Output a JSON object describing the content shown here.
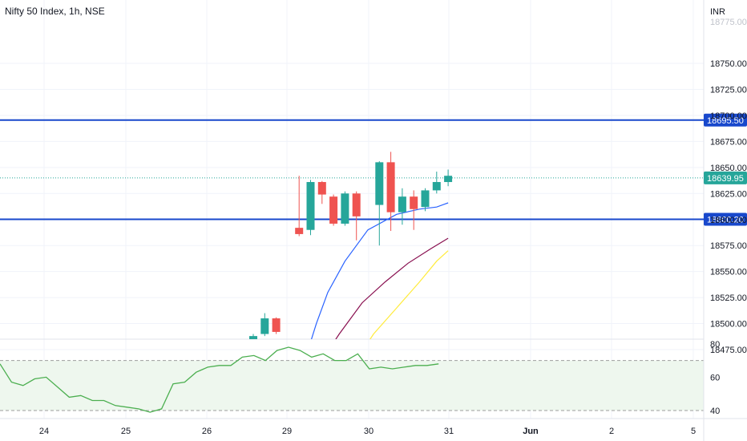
{
  "header": {
    "symbol_label": "Nifty 50 Index, 1h, NSE",
    "currency": "INR"
  },
  "price_axis": {
    "clipped_top_label": "18775.00",
    "ticks": [
      18750,
      18725,
      18700,
      18675,
      18650,
      18625,
      18600,
      18575,
      18550,
      18525,
      18500,
      18475
    ],
    "tick_labels": [
      "18750.00",
      "18725.00",
      "18700.00",
      "18675.00",
      "18650.00",
      "18625.00",
      "18600.00",
      "18575.00",
      "18550.00",
      "18525.00",
      "18500.00",
      "18475.00"
    ]
  },
  "price_lines": [
    {
      "label": "18695.50",
      "value": 18695.5,
      "color": "#1848cc"
    },
    {
      "label": "18600.20",
      "value": 18600.2,
      "color": "#1848cc"
    }
  ],
  "last_price": {
    "label": "18639.95",
    "value": 18639.95,
    "color": "#26a69a"
  },
  "time_axis": {
    "labels": [
      "24",
      "25",
      "26",
      "29",
      "30",
      "31",
      "Jun",
      "2",
      "5"
    ]
  },
  "indicator_axis": {
    "labels": [
      "80",
      "60",
      "40"
    ],
    "upper_band": 70,
    "lower_band": 40
  },
  "colors": {
    "up": "#26a69a",
    "down": "#ef5350",
    "ma_fast": "#2962ff",
    "ma_mid": "#880e4f",
    "ma_slow": "#ffeb3b",
    "rsi": "#4caf50",
    "band_fill": "#e8f5e9",
    "hline": "#1848cc"
  },
  "chart_data": {
    "type": "candlestick",
    "title": "Nifty 50 Index, 1h, NSE",
    "x": [
      "24",
      "25",
      "26",
      "29",
      "30",
      "31",
      "Jun",
      "2",
      "5"
    ],
    "ylim": [
      18465,
      18785
    ],
    "candles": [
      {
        "t": 30.0,
        "o": 18468,
        "h": 18490,
        "l": 18465,
        "c": 18488
      },
      {
        "t": 31.0,
        "o": 18490,
        "h": 18510,
        "l": 18488,
        "c": 18505
      },
      {
        "t": 32.0,
        "o": 18505,
        "h": 18506,
        "l": 18490,
        "c": 18492
      },
      {
        "t": 34.0,
        "o": 18592,
        "h": 18642,
        "l": 18584,
        "c": 18586
      },
      {
        "t": 35.0,
        "o": 18590,
        "h": 18638,
        "l": 18585,
        "c": 18636
      },
      {
        "t": 36.0,
        "o": 18636,
        "h": 18637,
        "l": 18615,
        "c": 18624
      },
      {
        "t": 37.0,
        "o": 18622,
        "h": 18624,
        "l": 18594,
        "c": 18596
      },
      {
        "t": 38.0,
        "o": 18596,
        "h": 18627,
        "l": 18594,
        "c": 18625
      },
      {
        "t": 39.0,
        "o": 18625,
        "h": 18627,
        "l": 18580,
        "c": 18603
      },
      {
        "t": 41.0,
        "o": 18614,
        "h": 18656,
        "l": 18575,
        "c": 18655
      },
      {
        "t": 42.0,
        "o": 18655,
        "h": 18665,
        "l": 18589,
        "c": 18607
      },
      {
        "t": 43.0,
        "o": 18607,
        "h": 18630,
        "l": 18595,
        "c": 18622
      },
      {
        "t": 44.0,
        "o": 18622,
        "h": 18628,
        "l": 18590,
        "c": 18610
      },
      {
        "t": 45.0,
        "o": 18612,
        "h": 18630,
        "l": 18608,
        "c": 18628
      },
      {
        "t": 46.0,
        "o": 18628,
        "h": 18646,
        "l": 18625,
        "c": 18636
      },
      {
        "t": 47.0,
        "o": 18636,
        "h": 18648,
        "l": 18632,
        "c": 18642
      }
    ],
    "series": [
      {
        "values": [
          [
            34.5,
            18465
          ],
          [
            35.5,
            18500
          ],
          [
            36.5,
            18530
          ],
          [
            38.0,
            18560
          ],
          [
            40.0,
            18590
          ],
          [
            42.5,
            18605
          ],
          [
            44.5,
            18610
          ],
          [
            46.0,
            18612
          ],
          [
            47.0,
            18616
          ]
        ]
      },
      {
        "values": [
          [
            36.0,
            18465
          ],
          [
            37.5,
            18490
          ],
          [
            39.5,
            18520
          ],
          [
            41.5,
            18540
          ],
          [
            43.5,
            18558
          ],
          [
            45.5,
            18572
          ],
          [
            47.0,
            18582
          ]
        ]
      },
      {
        "values": [
          [
            39.0,
            18465
          ],
          [
            40.5,
            18490
          ],
          [
            42.5,
            18515
          ],
          [
            44.5,
            18540
          ],
          [
            46.0,
            18560
          ],
          [
            47.0,
            18570
          ]
        ]
      }
    ],
    "indicator": {
      "ylim": [
        36,
        82
      ],
      "bands": [
        70,
        40
      ],
      "values": [
        [
          0,
          68
        ],
        [
          1,
          57
        ],
        [
          2,
          55
        ],
        [
          3,
          59
        ],
        [
          4,
          60
        ],
        [
          5,
          54
        ],
        [
          6,
          48
        ],
        [
          7,
          49
        ],
        [
          8,
          46
        ],
        [
          9,
          46
        ],
        [
          10,
          43
        ],
        [
          11,
          42
        ],
        [
          12,
          41
        ],
        [
          13,
          39
        ],
        [
          14,
          41
        ],
        [
          15,
          56
        ],
        [
          16,
          57
        ],
        [
          17,
          63
        ],
        [
          18,
          66
        ],
        [
          19,
          67
        ],
        [
          20,
          67
        ],
        [
          21,
          72
        ],
        [
          22,
          73
        ],
        [
          23,
          70
        ],
        [
          24,
          76
        ],
        [
          25,
          78
        ],
        [
          26,
          76
        ],
        [
          27,
          72
        ],
        [
          28,
          74
        ],
        [
          29,
          70
        ],
        [
          30,
          70
        ],
        [
          31,
          74
        ],
        [
          32,
          65
        ],
        [
          33,
          66
        ],
        [
          34,
          65
        ],
        [
          35,
          66
        ],
        [
          36,
          67
        ],
        [
          37,
          67
        ],
        [
          38,
          68
        ]
      ]
    }
  }
}
